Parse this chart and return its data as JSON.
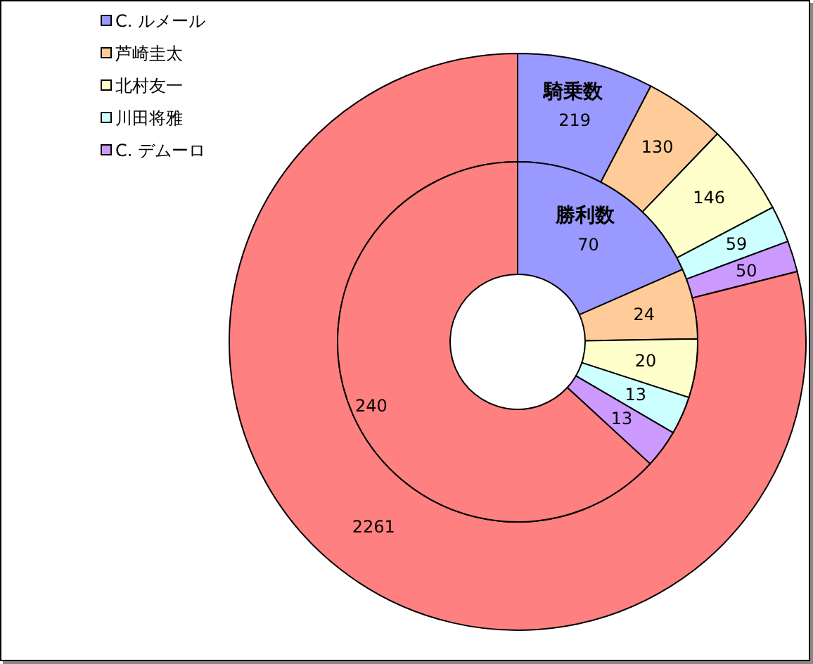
{
  "chart_data": {
    "type": "donut",
    "categories": [
      "C. ルメール",
      "芦崎圭太",
      "北村友一",
      "川田将雅",
      "C. デムーロ",
      null
    ],
    "colors": [
      "#9999ff",
      "#ffcc99",
      "#ffffcc",
      "#ccffff",
      "#cc99ff",
      "#ff8080"
    ],
    "series": [
      {
        "name": "騎乗数",
        "values": [
          219,
          130,
          146,
          59,
          50,
          2261
        ]
      },
      {
        "name": "勝利数",
        "values": [
          70,
          24,
          20,
          13,
          13,
          240
        ]
      }
    ],
    "data_labels": true,
    "legend": "top left"
  }
}
